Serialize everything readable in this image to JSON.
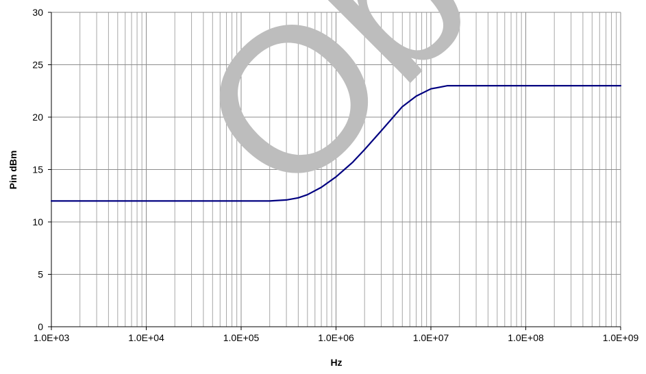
{
  "chart_data": {
    "type": "line",
    "title": "",
    "xlabel": "Hz",
    "ylabel": "Pin dBm",
    "x_scale": "log",
    "xlim": [
      1000,
      1000000000
    ],
    "ylim": [
      0,
      30
    ],
    "x_ticks": [
      1000,
      10000,
      100000,
      1000000,
      10000000,
      100000000,
      1000000000
    ],
    "x_tick_labels": [
      "1.0E+03",
      "1.0E+04",
      "1.0E+05",
      "1.0E+06",
      "1.0E+07",
      "1.0E+08",
      "1.0E+09"
    ],
    "y_ticks": [
      0,
      5,
      10,
      15,
      20,
      25,
      30
    ],
    "y_tick_labels": [
      "0",
      "5",
      "10",
      "15",
      "20",
      "25",
      "30"
    ],
    "grid": true,
    "legend": "none",
    "line_color": "#000080",
    "series": [
      {
        "x": [
          1000,
          10000,
          100000,
          200000,
          300000,
          400000,
          500000,
          700000,
          1000000,
          1500000,
          2000000,
          3000000,
          5000000,
          7000000,
          10000000,
          15000000,
          30000000,
          100000000,
          1000000000
        ],
        "y": [
          12.0,
          12.0,
          12.0,
          12.0,
          12.1,
          12.3,
          12.6,
          13.3,
          14.3,
          15.7,
          16.9,
          18.7,
          21.0,
          22.0,
          22.7,
          23.0,
          23.0,
          23.0,
          23.0
        ]
      }
    ]
  },
  "watermark": {
    "text": "Obsolete",
    "color": "#bdbdbd"
  }
}
